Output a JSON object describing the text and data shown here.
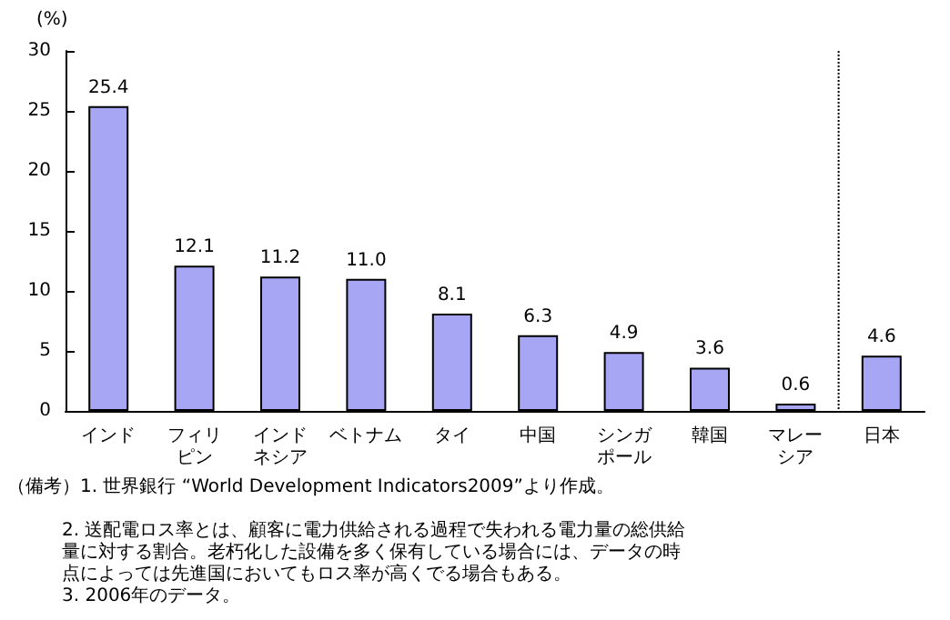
{
  "chart_data": {
    "type": "bar",
    "ylabel": "(%)",
    "categories": [
      "インド",
      "フィリピン",
      "インドネシア",
      "ベトナム",
      "タイ",
      "中国",
      "シンガポール",
      "韓国",
      "マレーシア",
      "日本"
    ],
    "values": [
      25.4,
      12.1,
      11.2,
      11.0,
      8.1,
      6.3,
      4.9,
      3.6,
      0.6,
      4.6
    ],
    "color": "#a6a6f5",
    "value_labels": [
      "25.4",
      "12.1",
      "11.2",
      "11.0",
      "8.1",
      "6.3",
      "4.9",
      "3.6",
      "0.6",
      "4.6"
    ],
    "ylim": [
      0,
      30
    ],
    "yticks": [
      0,
      5,
      10,
      15,
      20,
      25,
      30
    ],
    "annotations": [
      "（備考）1. 世界銀行 “World Development Indicators2009”より作成。",
      "2. 送配電ロス率とは、顧客に電力供給される過程で失われる電力量の総供給量に対する割合。老朽化した設備を多く保有している場合には、データの時点によっては先進国においてもロス率が高くでる場合もある。",
      "3. 2006年のデータ。"
    ]
  }
}
